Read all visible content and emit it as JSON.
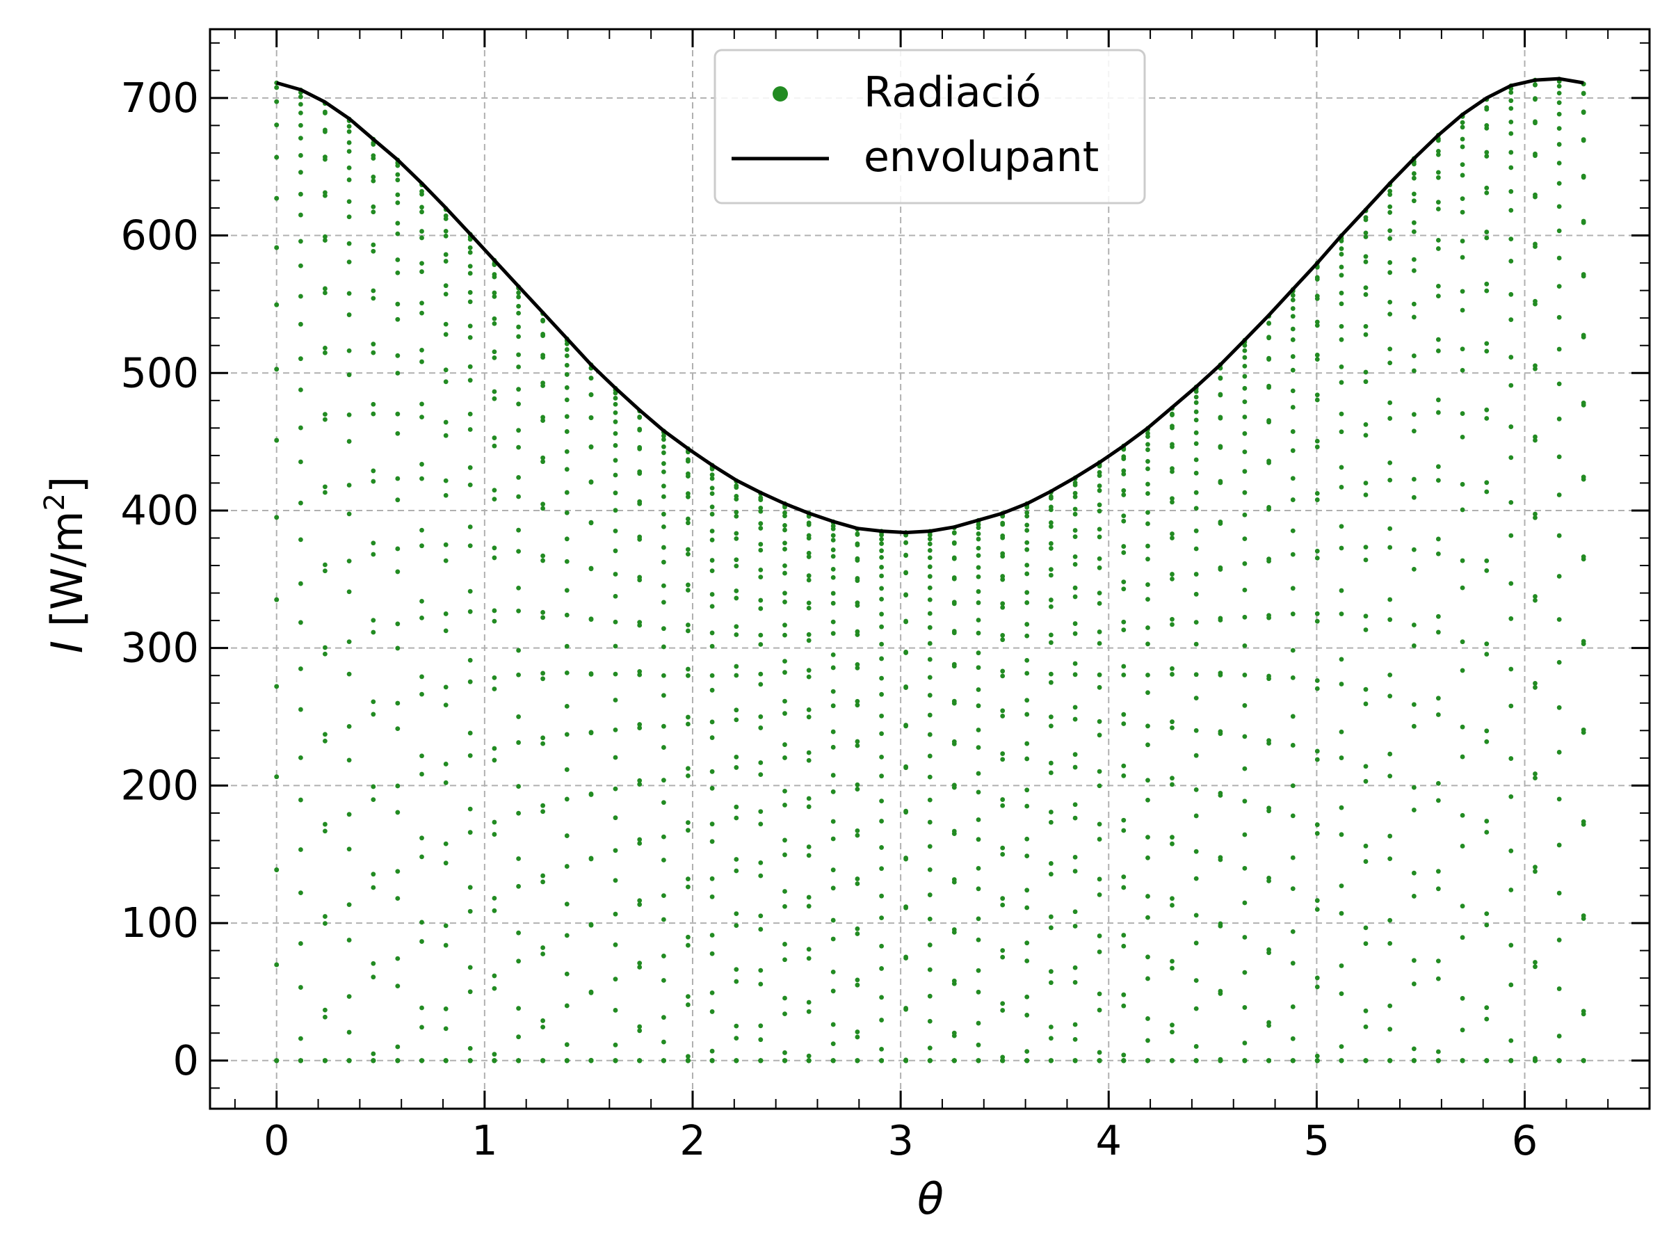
{
  "chart_data": {
    "type": "scatter",
    "title": "",
    "xlabel": "θ",
    "ylabel": {
      "var": "I",
      "unit_prefix": " [W/m",
      "unit_sup": "2",
      "unit_suffix": "]"
    },
    "xlim": [
      -0.32,
      6.6
    ],
    "ylim": [
      -35,
      750
    ],
    "xticks": [
      0,
      1,
      2,
      3,
      4,
      5,
      6
    ],
    "xtick_labels": [
      "0",
      "1",
      "2",
      "3",
      "4",
      "5",
      "6"
    ],
    "yticks": [
      0,
      100,
      200,
      300,
      400,
      500,
      600,
      700
    ],
    "ytick_labels": [
      "0",
      "100",
      "200",
      "300",
      "400",
      "500",
      "600",
      "700"
    ],
    "grid": true,
    "legend_position": "top-center",
    "colors": {
      "scatter": "#228b22",
      "envelope": "#000000",
      "grid": "#b0b0b0"
    },
    "series": [
      {
        "name": "Radiació",
        "type": "scatter",
        "description_rule": "vertical columns at 55 equally spaced θ from 0 to 2π; each column holds 64 points from 0 up to the envelope value, many at 0",
        "n_columns": 55,
        "points_per_column": 64
      },
      {
        "name": "envolupant",
        "type": "line",
        "x": [
          0.0,
          0.116,
          0.233,
          0.349,
          0.465,
          0.582,
          0.698,
          0.814,
          0.931,
          1.047,
          1.163,
          1.28,
          1.396,
          1.512,
          1.629,
          1.745,
          1.861,
          1.978,
          2.094,
          2.21,
          2.327,
          2.443,
          2.559,
          2.676,
          2.792,
          2.908,
          3.025,
          3.141,
          3.258,
          3.374,
          3.49,
          3.607,
          3.723,
          3.839,
          3.956,
          4.072,
          4.188,
          4.305,
          4.421,
          4.537,
          4.654,
          4.77,
          4.886,
          5.003,
          5.119,
          5.236,
          5.352,
          5.468,
          5.585,
          5.701,
          5.817,
          5.934,
          6.05,
          6.166,
          6.283
        ],
        "y": [
          711,
          706,
          697,
          685,
          670,
          655,
          638,
          620,
          601,
          582,
          563,
          544,
          525,
          506,
          489,
          473,
          458,
          445,
          433,
          422,
          413,
          405,
          398,
          392,
          387,
          385,
          384,
          385,
          388,
          393,
          398,
          405,
          414,
          424,
          435,
          447,
          460,
          475,
          490,
          506,
          524,
          542,
          561,
          580,
          600,
          619,
          638,
          656,
          673,
          688,
          700,
          709,
          713,
          714,
          711
        ]
      }
    ]
  }
}
